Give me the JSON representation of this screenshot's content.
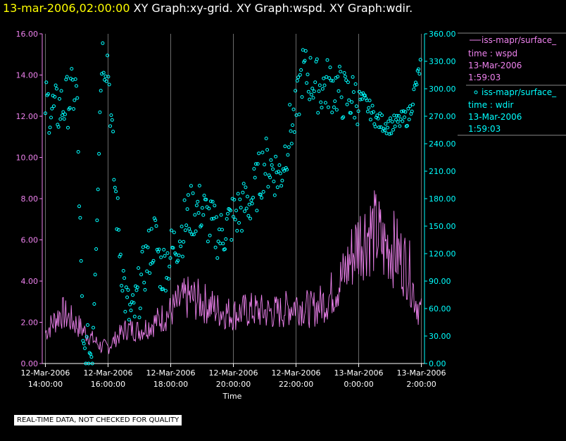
{
  "header": {
    "datetime": "13-mar-2006,02:00:00",
    "graphs": " XY Graph:xy-grid.  XY Graph:wspd.  XY Graph:wdir."
  },
  "footer": {
    "note": "REAL-TIME DATA, NOT CHECKED FOR QUALITY"
  },
  "colors": {
    "wspd": "#ee82ee",
    "wdir": "#00ffff",
    "grid": "#ffffff",
    "background": "#000000"
  },
  "chart_data": {
    "type": "line",
    "xlabel": "Time",
    "x_ticks": [
      {
        "date": "12-Mar-2006",
        "time": "14:00:00"
      },
      {
        "date": "12-Mar-2006",
        "time": "16:00:00"
      },
      {
        "date": "12-Mar-2006",
        "time": "18:00:00"
      },
      {
        "date": "12-Mar-2006",
        "time": "20:00:00"
      },
      {
        "date": "12-Mar-2006",
        "time": "22:00:00"
      },
      {
        "date": "13-Mar-2006",
        "time": "0:00:00"
      },
      {
        "date": "13-Mar-2006",
        "time": "2:00:00"
      }
    ],
    "xlim_hours": [
      13.9,
      26.1
    ],
    "y_left": {
      "ylim": [
        0,
        16
      ],
      "ticks": [
        "0.00",
        "2.00",
        "4.00",
        "6.00",
        "8.00",
        "10.00",
        "12.00",
        "14.00",
        "16.00"
      ]
    },
    "y_right": {
      "ylim": [
        0,
        360
      ],
      "ticks": [
        "0.00",
        "30.00",
        "60.00",
        "90.00",
        "120.00",
        "150.00",
        "180.00",
        "210.00",
        "240.00",
        "270.00",
        "300.00",
        "330.00",
        "360.00"
      ]
    },
    "grid": "vertical lines at x ticks",
    "legend": [
      {
        "label": "iss-mapr/surface_",
        "var": "time : wspd",
        "date": "13-Mar-2006",
        "time": "1:59:03"
      },
      {
        "label": "iss-mapr/surface_",
        "var": "time : wdir",
        "date": "13-Mar-2006",
        "time": "1:59:03"
      }
    ],
    "series": [
      {
        "name": "wspd",
        "style": "line",
        "axis": "left",
        "x": [
          14.0,
          14.5,
          15.0,
          15.5,
          15.8,
          16.0,
          16.3,
          16.6,
          17.0,
          17.5,
          18.0,
          18.3,
          18.6,
          19.0,
          19.5,
          20.0,
          20.5,
          21.0,
          21.5,
          22.0,
          22.5,
          23.0,
          23.5,
          24.0,
          24.3,
          24.6,
          24.8,
          25.0,
          25.3,
          25.6,
          25.8,
          26.0
        ],
        "values": [
          1.5,
          2.5,
          1.9,
          1.2,
          0.8,
          0.8,
          1.3,
          1.7,
          1.6,
          2.0,
          2.5,
          3.0,
          3.2,
          3.0,
          2.6,
          2.4,
          2.6,
          2.5,
          2.5,
          2.9,
          2.6,
          3.1,
          4.2,
          6.0,
          6.4,
          6.3,
          5.6,
          5.8,
          5.2,
          4.6,
          3.2,
          2.4
        ]
      },
      {
        "name": "wdir",
        "style": "markers",
        "axis": "right",
        "x": [
          14.0,
          14.3,
          14.6,
          15.0,
          15.2,
          15.5,
          15.8,
          16.0,
          16.2,
          16.4,
          16.6,
          16.8,
          17.0,
          17.2,
          17.5,
          17.7,
          18.0,
          18.3,
          18.6,
          19.0,
          19.3,
          19.6,
          20.0,
          20.3,
          20.6,
          21.0,
          21.2,
          21.5,
          21.8,
          22.0,
          22.2,
          22.5,
          22.8,
          23.0,
          23.3,
          23.6,
          24.0,
          24.2,
          24.4,
          24.6,
          24.8,
          25.0,
          25.2,
          25.4,
          25.6,
          25.8,
          26.0
        ],
        "values": [
          285,
          275,
          282,
          300,
          10,
          15,
          340,
          330,
          200,
          120,
          60,
          50,
          80,
          110,
          140,
          100,
          120,
          140,
          165,
          170,
          150,
          140,
          160,
          170,
          180,
          220,
          215,
          205,
          255,
          270,
          320,
          310,
          300,
          305,
          300,
          290,
          290,
          285,
          275,
          265,
          262,
          260,
          262,
          266,
          270,
          300,
          330
        ]
      }
    ]
  }
}
